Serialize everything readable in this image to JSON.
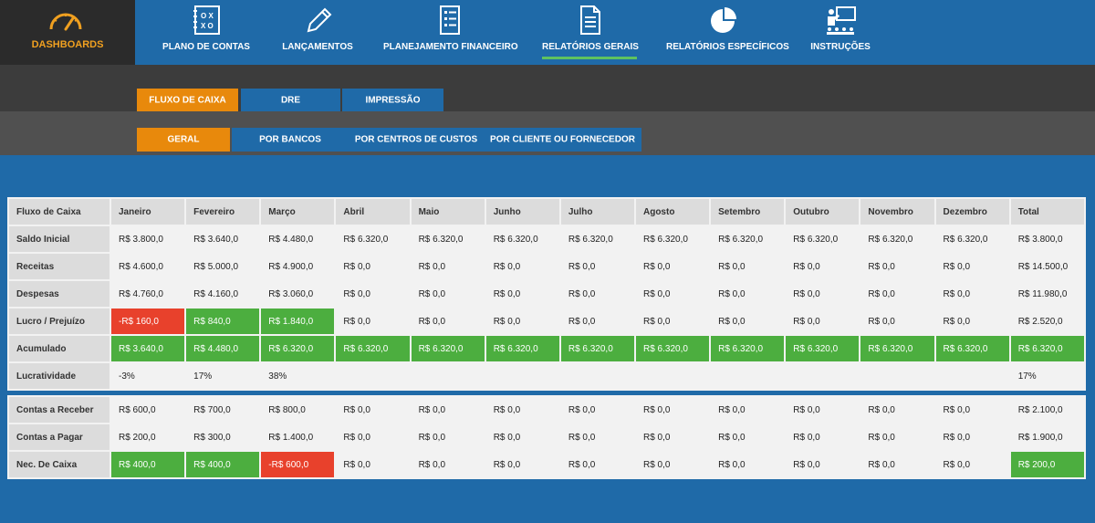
{
  "brand": {
    "label": "DASHBOARDS",
    "icon": "gauge-icon",
    "accent": "#f0a020"
  },
  "nav": [
    {
      "label": "PLANO DE CONTAS",
      "icon": "plan-board-icon"
    },
    {
      "label": "LANÇAMENTOS",
      "icon": "pencil-icon"
    },
    {
      "label": "PLANEJAMENTO FINANCEIRO",
      "icon": "checklist-icon"
    },
    {
      "label": "RELATÓRIOS GERAIS",
      "icon": "document-icon",
      "active": true
    },
    {
      "label": "RELATÓRIOS ESPECÍFICOS",
      "icon": "pie-chart-icon"
    },
    {
      "label": "INSTRUÇÕES",
      "icon": "presenter-icon"
    }
  ],
  "tabs": [
    {
      "label": "FLUXO DE CAIXA",
      "active": true
    },
    {
      "label": "DRE"
    },
    {
      "label": "IMPRESSÃO"
    }
  ],
  "subtabs": [
    {
      "label": "GERAL",
      "active": true
    },
    {
      "label": "POR BANCOS"
    },
    {
      "label": "POR CENTROS DE CUSTOS"
    },
    {
      "label": "POR CLIENTE OU FORNECEDOR"
    }
  ],
  "table": {
    "headers": [
      "Fluxo de Caixa",
      "Janeiro",
      "Fevereiro",
      "Março",
      "Abril",
      "Maio",
      "Junho",
      "Julho",
      "Agosto",
      "Setembro",
      "Outubro",
      "Novembro",
      "Dezembro",
      "Total"
    ],
    "rows": [
      {
        "label": "Saldo Inicial",
        "cells": [
          "R$ 3.800,0",
          "R$ 3.640,0",
          "R$ 4.480,0",
          "R$ 6.320,0",
          "R$ 6.320,0",
          "R$ 6.320,0",
          "R$ 6.320,0",
          "R$ 6.320,0",
          "R$ 6.320,0",
          "R$ 6.320,0",
          "R$ 6.320,0",
          "R$ 6.320,0",
          "R$ 3.800,0"
        ]
      },
      {
        "label": "Receitas",
        "cells": [
          "R$ 4.600,0",
          "R$ 5.000,0",
          "R$ 4.900,0",
          "R$ 0,0",
          "R$ 0,0",
          "R$ 0,0",
          "R$ 0,0",
          "R$ 0,0",
          "R$ 0,0",
          "R$ 0,0",
          "R$ 0,0",
          "R$ 0,0",
          "R$ 14.500,0"
        ]
      },
      {
        "label": "Despesas",
        "cells": [
          "R$ 4.760,0",
          "R$ 4.160,0",
          "R$ 3.060,0",
          "R$ 0,0",
          "R$ 0,0",
          "R$ 0,0",
          "R$ 0,0",
          "R$ 0,0",
          "R$ 0,0",
          "R$ 0,0",
          "R$ 0,0",
          "R$ 0,0",
          "R$ 11.980,0"
        ]
      },
      {
        "label": "Lucro / Prejuízo",
        "cells": [
          "-R$ 160,0",
          "R$ 840,0",
          "R$ 1.840,0",
          "R$ 0,0",
          "R$ 0,0",
          "R$ 0,0",
          "R$ 0,0",
          "R$ 0,0",
          "R$ 0,0",
          "R$ 0,0",
          "R$ 0,0",
          "R$ 0,0",
          "R$ 2.520,0"
        ],
        "status": [
          "r",
          "g",
          "g",
          "",
          "",
          "",
          "",
          "",
          "",
          "",
          "",
          "",
          ""
        ]
      },
      {
        "label": "Acumulado",
        "cells": [
          "R$ 3.640,0",
          "R$ 4.480,0",
          "R$ 6.320,0",
          "R$ 6.320,0",
          "R$ 6.320,0",
          "R$ 6.320,0",
          "R$ 6.320,0",
          "R$ 6.320,0",
          "R$ 6.320,0",
          "R$ 6.320,0",
          "R$ 6.320,0",
          "R$ 6.320,0",
          "R$ 6.320,0"
        ],
        "status": [
          "g",
          "g",
          "g",
          "g",
          "g",
          "g",
          "g",
          "g",
          "g",
          "g",
          "g",
          "g",
          "g"
        ]
      },
      {
        "label": "Lucratividade",
        "cells": [
          "-3%",
          "17%",
          "38%",
          "",
          "",
          "",
          "",
          "",
          "",
          "",
          "",
          "",
          "17%"
        ]
      }
    ]
  },
  "table2": {
    "rows": [
      {
        "label": "Contas a Receber",
        "cells": [
          "R$ 600,0",
          "R$ 700,0",
          "R$ 800,0",
          "R$ 0,0",
          "R$ 0,0",
          "R$ 0,0",
          "R$ 0,0",
          "R$ 0,0",
          "R$ 0,0",
          "R$ 0,0",
          "R$ 0,0",
          "R$ 0,0",
          "R$ 2.100,0"
        ]
      },
      {
        "label": "Contas a Pagar",
        "cells": [
          "R$ 200,0",
          "R$ 300,0",
          "R$ 1.400,0",
          "R$ 0,0",
          "R$ 0,0",
          "R$ 0,0",
          "R$ 0,0",
          "R$ 0,0",
          "R$ 0,0",
          "R$ 0,0",
          "R$ 0,0",
          "R$ 0,0",
          "R$ 1.900,0"
        ]
      },
      {
        "label": "Nec. De Caixa",
        "cells": [
          "R$ 400,0",
          "R$ 400,0",
          "-R$ 600,0",
          "R$ 0,0",
          "R$ 0,0",
          "R$ 0,0",
          "R$ 0,0",
          "R$ 0,0",
          "R$ 0,0",
          "R$ 0,0",
          "R$ 0,0",
          "R$ 0,0",
          "R$ 200,0"
        ],
        "status": [
          "g",
          "g",
          "r",
          "",
          "",
          "",
          "",
          "",
          "",
          "",
          "",
          "",
          "g"
        ]
      }
    ]
  },
  "colors": {
    "nav_bg": "#1f6aa8",
    "active_tab": "#e8890c",
    "positive": "#4cae3f",
    "negative": "#e8412c",
    "underline": "#5fc25f"
  }
}
